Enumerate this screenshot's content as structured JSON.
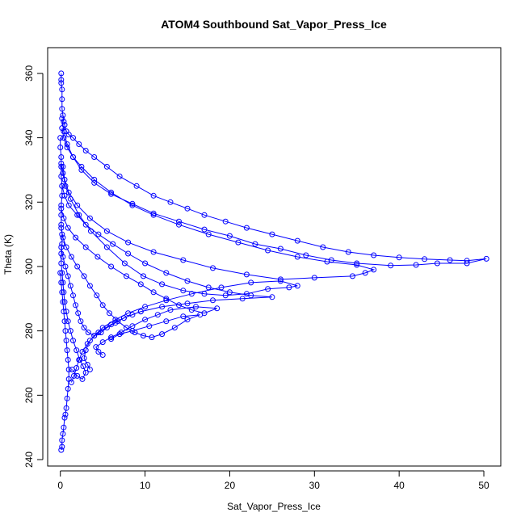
{
  "chart_data": {
    "type": "scatter",
    "title": "ATOM4 Southbound Sat_Vapor_Press_Ice",
    "xlabel": "Sat_Vapor_Press_Ice",
    "ylabel": "Theta (K)",
    "xlim": [
      -1.5,
      52
    ],
    "ylim": [
      238,
      368
    ],
    "x_ticks": [
      0,
      10,
      20,
      30,
      40,
      50
    ],
    "y_ticks": [
      240,
      260,
      280,
      300,
      320,
      340,
      360
    ],
    "x_tick_labels": [
      "0",
      "10",
      "20",
      "30",
      "40",
      "50"
    ],
    "y_tick_labels": [
      "240",
      "260",
      "280",
      "300",
      "320",
      "340",
      "360"
    ],
    "grid": false,
    "marker": "open-circle",
    "connected": true,
    "colors": {
      "series": "#0000ff",
      "axis": "#000000"
    },
    "series": [
      {
        "points": [
          [
            0.1,
            360
          ],
          [
            0.1,
            358
          ],
          [
            0.1,
            357
          ],
          [
            0.2,
            355
          ],
          [
            0.2,
            352
          ],
          [
            0.2,
            349
          ],
          [
            0.3,
            347
          ],
          [
            0.4,
            345
          ],
          [
            0.5,
            344
          ],
          [
            0.7,
            342
          ],
          [
            1.0,
            341
          ],
          [
            1.5,
            340
          ],
          [
            2.2,
            338
          ],
          [
            3.0,
            336
          ],
          [
            4.0,
            334
          ],
          [
            5.5,
            331
          ],
          [
            7.0,
            328
          ],
          [
            9.0,
            325
          ],
          [
            11.0,
            322
          ],
          [
            13.0,
            320
          ],
          [
            15.0,
            318
          ],
          [
            17.0,
            316
          ],
          [
            19.5,
            314
          ],
          [
            22.0,
            312
          ],
          [
            25.0,
            310
          ],
          [
            28.0,
            308
          ],
          [
            31.0,
            306
          ],
          [
            34.0,
            304.5
          ],
          [
            37.0,
            303.5
          ],
          [
            40.0,
            302.8
          ],
          [
            43.0,
            302.3
          ],
          [
            46.0,
            302.0
          ],
          [
            48.0,
            301.8
          ],
          [
            50.3,
            302.4
          ],
          [
            48.0,
            301.0
          ],
          [
            44.5,
            301.0
          ],
          [
            42.0,
            300.5
          ],
          [
            39.0,
            300.3
          ],
          [
            35.0,
            301.0
          ],
          [
            32.0,
            302.0
          ],
          [
            29.0,
            303.5
          ],
          [
            26.0,
            305.5
          ],
          [
            23.0,
            307.0
          ],
          [
            20.0,
            309.5
          ],
          [
            17.0,
            311.5
          ],
          [
            14.0,
            314.0
          ],
          [
            11.0,
            316.5
          ],
          [
            8.5,
            319.5
          ],
          [
            6.0,
            322.5
          ],
          [
            4.0,
            326.0
          ],
          [
            2.5,
            330.0
          ],
          [
            1.5,
            334.0
          ],
          [
            0.8,
            338.0
          ],
          [
            0.4,
            342.0
          ],
          [
            0.2,
            346.0
          ]
        ]
      },
      {
        "points": [
          [
            0.2,
            343
          ],
          [
            0.4,
            340
          ],
          [
            0.8,
            337
          ],
          [
            1.5,
            334
          ],
          [
            2.5,
            331
          ],
          [
            4.0,
            327
          ],
          [
            6.0,
            323
          ],
          [
            8.5,
            319
          ],
          [
            11.0,
            316
          ],
          [
            14.0,
            313
          ],
          [
            17.5,
            310
          ],
          [
            21.0,
            307.5
          ],
          [
            24.5,
            305
          ],
          [
            28.0,
            303
          ],
          [
            31.5,
            301.5
          ],
          [
            35.0,
            300.5
          ],
          [
            37.0,
            299
          ],
          [
            36.0,
            298
          ],
          [
            34.5,
            297
          ],
          [
            30.0,
            296.5
          ],
          [
            26.0,
            296.0
          ],
          [
            22.0,
            297.5
          ],
          [
            18.0,
            299.5
          ],
          [
            14.5,
            302.0
          ],
          [
            11.0,
            304.5
          ],
          [
            8.0,
            307.5
          ],
          [
            5.5,
            311.0
          ],
          [
            3.5,
            315.0
          ],
          [
            2.0,
            319.0
          ],
          [
            1.0,
            323.0
          ],
          [
            0.5,
            327.0
          ],
          [
            0.3,
            331.0
          ]
        ]
      },
      {
        "points": [
          [
            0.1,
            332
          ],
          [
            0.3,
            329
          ],
          [
            0.6,
            325
          ],
          [
            1.2,
            321
          ],
          [
            2.2,
            316
          ],
          [
            3.6,
            311
          ],
          [
            5.5,
            306
          ],
          [
            7.6,
            301
          ],
          [
            9.8,
            297
          ],
          [
            12.0,
            294.5
          ],
          [
            14.5,
            292.5
          ],
          [
            17.0,
            291.5
          ],
          [
            19.5,
            291.0
          ],
          [
            22.0,
            291.5
          ],
          [
            24.5,
            293.0
          ],
          [
            27.0,
            293.5
          ],
          [
            28.0,
            294.0
          ],
          [
            26.0,
            295.5
          ],
          [
            22.5,
            295.0
          ],
          [
            19.0,
            293.5
          ],
          [
            15.5,
            291.5
          ],
          [
            12.5,
            289.5
          ],
          [
            10.0,
            287.5
          ],
          [
            8.0,
            285.5
          ],
          [
            6.5,
            283.5
          ],
          [
            5.0,
            281.0
          ],
          [
            4.0,
            278.5
          ],
          [
            3.2,
            276.0
          ],
          [
            2.6,
            273.5
          ],
          [
            2.2,
            271.0
          ],
          [
            1.9,
            268.5
          ],
          [
            1.6,
            266.0
          ],
          [
            1.3,
            264.0
          ]
        ]
      },
      {
        "points": [
          [
            0.2,
            325
          ],
          [
            0.5,
            322
          ],
          [
            1.0,
            319
          ],
          [
            2.0,
            316
          ],
          [
            3.0,
            313
          ],
          [
            4.5,
            310
          ],
          [
            6.2,
            307
          ],
          [
            8.0,
            304
          ],
          [
            10.0,
            301
          ],
          [
            12.5,
            298
          ],
          [
            15.0,
            295.5
          ],
          [
            17.5,
            293.5
          ],
          [
            20.0,
            292
          ],
          [
            22.5,
            291.0
          ],
          [
            25.0,
            290.5
          ],
          [
            21.5,
            290.0
          ],
          [
            18.0,
            289.5
          ],
          [
            15.0,
            288.5
          ],
          [
            12.0,
            287.5
          ],
          [
            9.5,
            286.0
          ],
          [
            7.5,
            284.0
          ],
          [
            6.0,
            282.0
          ],
          [
            4.5,
            279.5
          ],
          [
            3.5,
            277.0
          ],
          [
            3.0,
            274.0
          ],
          [
            2.8,
            271.5
          ],
          [
            3.2,
            269.5
          ],
          [
            3.5,
            268.0
          ]
        ]
      },
      {
        "points": [
          [
            0.1,
            318
          ],
          [
            0.4,
            315
          ],
          [
            0.9,
            312
          ],
          [
            1.8,
            309
          ],
          [
            3.0,
            306
          ],
          [
            4.4,
            303
          ],
          [
            6.0,
            300
          ],
          [
            7.8,
            297
          ],
          [
            9.5,
            294.5
          ],
          [
            11.0,
            292
          ],
          [
            12.5,
            290
          ],
          [
            14.0,
            288
          ],
          [
            15.5,
            286.5
          ],
          [
            17.0,
            285.5
          ],
          [
            18.5,
            287.0
          ],
          [
            16.0,
            287.5
          ],
          [
            13.0,
            286.5
          ],
          [
            11.5,
            285.0
          ],
          [
            10.0,
            283.5
          ],
          [
            8.5,
            281.5
          ],
          [
            7.2,
            279.5
          ],
          [
            6.0,
            278.0
          ],
          [
            5.0,
            276.5
          ],
          [
            4.2,
            275.0
          ],
          [
            4.5,
            273.5
          ],
          [
            5.0,
            272.5
          ]
        ]
      },
      {
        "points": [
          [
            0.1,
            312
          ],
          [
            0.3,
            309
          ],
          [
            0.7,
            306
          ],
          [
            1.3,
            303
          ],
          [
            2.0,
            300
          ],
          [
            2.8,
            297
          ],
          [
            3.5,
            294
          ],
          [
            4.3,
            291
          ],
          [
            5.0,
            288
          ],
          [
            5.8,
            285.5
          ],
          [
            6.8,
            283
          ],
          [
            7.8,
            281
          ],
          [
            8.8,
            279.5
          ],
          [
            9.8,
            278.5
          ],
          [
            10.8,
            278.0
          ],
          [
            12.0,
            279.0
          ],
          [
            13.5,
            281.0
          ],
          [
            15.0,
            283.5
          ],
          [
            16.5,
            285.0
          ],
          [
            14.5,
            284.5
          ],
          [
            12.5,
            283.0
          ],
          [
            10.5,
            281.5
          ],
          [
            8.5,
            280.0
          ],
          [
            7.0,
            279.0
          ],
          [
            6.0,
            277.5
          ]
        ]
      },
      {
        "points": [
          [
            0.1,
            306
          ],
          [
            0.3,
            303
          ],
          [
            0.6,
            300
          ],
          [
            0.9,
            297
          ],
          [
            1.2,
            294
          ],
          [
            1.5,
            291
          ],
          [
            1.8,
            288
          ],
          [
            2.1,
            285.5
          ],
          [
            2.4,
            283
          ],
          [
            2.8,
            281
          ],
          [
            3.3,
            279.5
          ],
          [
            4.0,
            278.5
          ],
          [
            4.8,
            279.5
          ],
          [
            5.5,
            281.0
          ],
          [
            6.5,
            282.5
          ],
          [
            7.5,
            284.0
          ],
          [
            8.5,
            285.0
          ],
          [
            9.5,
            286.0
          ]
        ]
      },
      {
        "points": [
          [
            0.0,
            298
          ],
          [
            0.1,
            295
          ],
          [
            0.2,
            292
          ],
          [
            0.3,
            289
          ],
          [
            0.4,
            286
          ],
          [
            0.5,
            283
          ],
          [
            0.6,
            280
          ],
          [
            0.7,
            277
          ],
          [
            0.8,
            274
          ],
          [
            0.9,
            271
          ],
          [
            1.0,
            268
          ],
          [
            1.0,
            265
          ],
          [
            0.9,
            262
          ],
          [
            0.8,
            259
          ],
          [
            0.7,
            256
          ],
          [
            0.6,
            254
          ],
          [
            0.5,
            253
          ],
          [
            0.4,
            250
          ],
          [
            0.3,
            248
          ],
          [
            0.2,
            246
          ],
          [
            0.2,
            244
          ],
          [
            0.1,
            243
          ]
        ]
      },
      {
        "points": [
          [
            0.0,
            340
          ],
          [
            0.0,
            337
          ],
          [
            0.1,
            334
          ],
          [
            0.1,
            331
          ],
          [
            0.1,
            328
          ],
          [
            0.2,
            325
          ],
          [
            0.2,
            322
          ],
          [
            0.1,
            319
          ],
          [
            0.1,
            316
          ],
          [
            0.1,
            313
          ],
          [
            0.2,
            310
          ],
          [
            0.2,
            307
          ],
          [
            0.1,
            304
          ],
          [
            0.1,
            301
          ],
          [
            0.2,
            298
          ],
          [
            0.3,
            295
          ],
          [
            0.4,
            292
          ],
          [
            0.5,
            289
          ],
          [
            0.7,
            286
          ],
          [
            0.9,
            283
          ],
          [
            1.2,
            280
          ],
          [
            1.5,
            277
          ],
          [
            1.9,
            274
          ],
          [
            2.3,
            271
          ],
          [
            2.7,
            269
          ],
          [
            3.0,
            267
          ],
          [
            2.6,
            265
          ],
          [
            2.0,
            266
          ],
          [
            1.4,
            268
          ]
        ]
      }
    ]
  }
}
